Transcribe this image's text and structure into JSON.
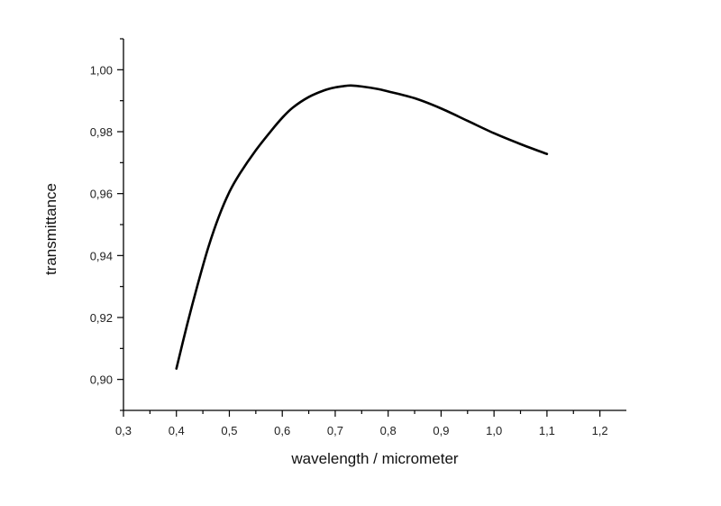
{
  "chart_data": {
    "type": "line",
    "xlabel": "wavelength / micrometer",
    "ylabel": "transmittance",
    "xlim": [
      0.3,
      1.25
    ],
    "ylim": [
      0.89,
      1.01
    ],
    "x_ticks": [
      "0,3",
      "0,4",
      "0,5",
      "0,6",
      "0,7",
      "0,8",
      "0,9",
      "1,0",
      "1,1",
      "1,2"
    ],
    "y_ticks": [
      "0,90",
      "0,92",
      "0,94",
      "0,96",
      "0,98",
      "1,00"
    ],
    "grid": false,
    "legend": "none",
    "line_color": "#000000",
    "series": [
      {
        "x": [
          0.4,
          0.42,
          0.44,
          0.46,
          0.48,
          0.5,
          0.52,
          0.55,
          0.58,
          0.6,
          0.62,
          0.65,
          0.68,
          0.7,
          0.72,
          0.73,
          0.75,
          0.78,
          0.8,
          0.85,
          0.9,
          0.95,
          1.0,
          1.05,
          1.1
        ],
        "y": [
          0.9035,
          0.9175,
          0.9305,
          0.9425,
          0.9525,
          0.9605,
          0.9665,
          0.974,
          0.9805,
          0.9845,
          0.9878,
          0.9912,
          0.9934,
          0.9943,
          0.9948,
          0.9949,
          0.9946,
          0.9938,
          0.993,
          0.9908,
          0.9875,
          0.9835,
          0.9795,
          0.976,
          0.9728
        ]
      }
    ]
  }
}
